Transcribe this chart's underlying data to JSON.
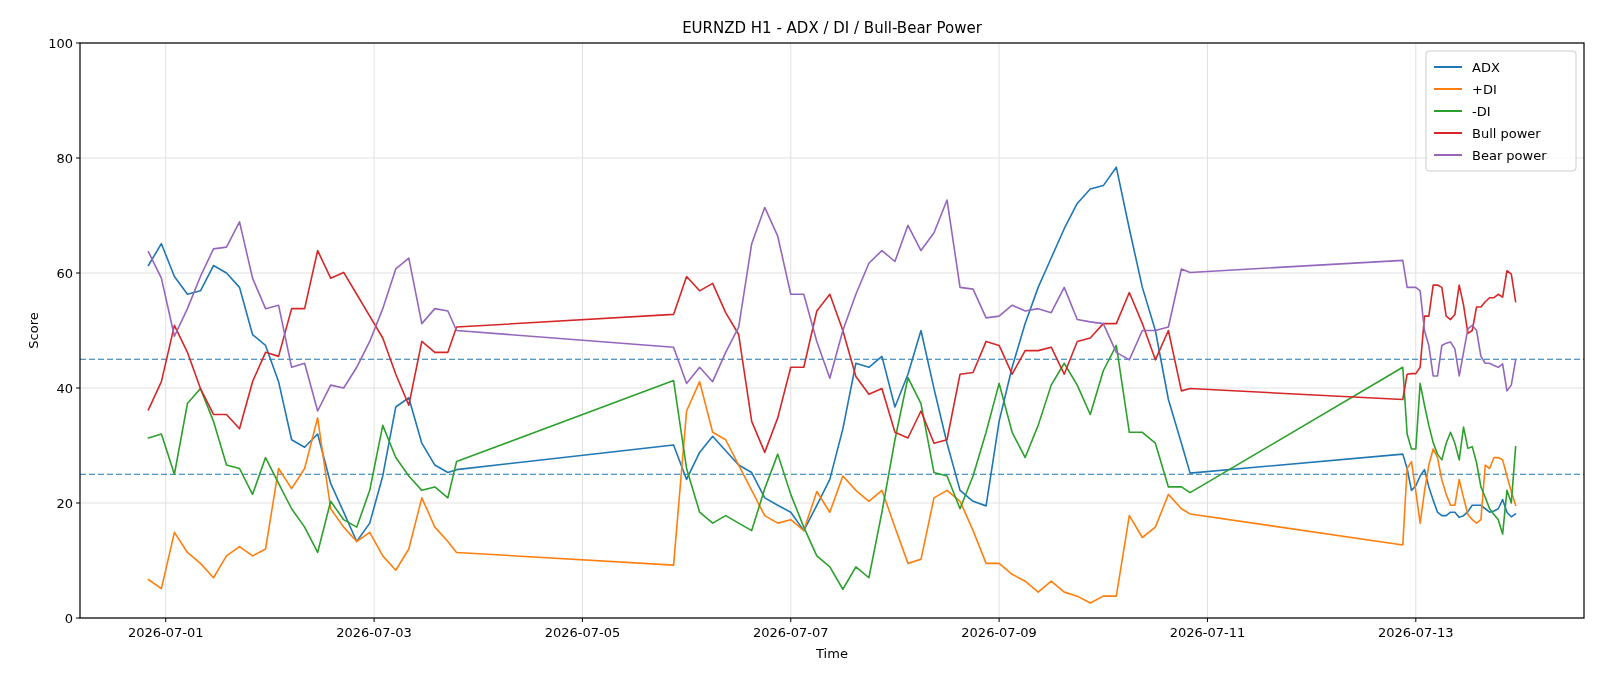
{
  "chart_data": {
    "type": "line",
    "title": "EURNZD H1 - ADX / DI / Bull-Bear Power",
    "xlabel": "Time",
    "ylabel": "Score",
    "x": [
      "2026-06-30T20:00",
      "2026-06-30T23:00",
      "2026-07-01T02:00",
      "2026-07-01T05:00",
      "2026-07-01T08:00",
      "2026-07-01T11:00",
      "2026-07-01T14:00",
      "2026-07-01T17:00",
      "2026-07-01T20:00",
      "2026-07-01T23:00",
      "2026-07-02T02:00",
      "2026-07-02T05:00",
      "2026-07-02T08:00",
      "2026-07-02T11:00",
      "2026-07-02T14:00",
      "2026-07-02T17:00",
      "2026-07-02T20:00",
      "2026-07-02T23:00",
      "2026-07-03T02:00",
      "2026-07-03T05:00",
      "2026-07-03T08:00",
      "2026-07-03T11:00",
      "2026-07-03T14:00",
      "2026-07-03T17:00",
      "2026-07-03T19:00",
      "2026-07-05T21:00",
      "2026-07-06T00:00",
      "2026-07-06T03:00",
      "2026-07-06T06:00",
      "2026-07-06T09:00",
      "2026-07-06T12:00",
      "2026-07-06T15:00",
      "2026-07-06T18:00",
      "2026-07-06T21:00",
      "2026-07-07T00:00",
      "2026-07-07T03:00",
      "2026-07-07T06:00",
      "2026-07-07T09:00",
      "2026-07-07T12:00",
      "2026-07-07T15:00",
      "2026-07-07T18:00",
      "2026-07-07T21:00",
      "2026-07-08T00:00",
      "2026-07-08T03:00",
      "2026-07-08T06:00",
      "2026-07-08T09:00",
      "2026-07-08T12:00",
      "2026-07-08T15:00",
      "2026-07-08T18:00",
      "2026-07-08T21:00",
      "2026-07-09T00:00",
      "2026-07-09T03:00",
      "2026-07-09T06:00",
      "2026-07-09T09:00",
      "2026-07-09T12:00",
      "2026-07-09T15:00",
      "2026-07-09T18:00",
      "2026-07-09T21:00",
      "2026-07-10T00:00",
      "2026-07-10T03:00",
      "2026-07-10T06:00",
      "2026-07-10T09:00",
      "2026-07-10T12:00",
      "2026-07-10T15:00",
      "2026-07-10T18:00",
      "2026-07-10T20:00",
      "2026-07-12T21:00",
      "2026-07-12T22:00",
      "2026-07-12T23:00",
      "2026-07-13T00:00",
      "2026-07-13T01:00",
      "2026-07-13T02:00",
      "2026-07-13T03:00",
      "2026-07-13T04:00",
      "2026-07-13T05:00",
      "2026-07-13T06:00",
      "2026-07-13T07:00",
      "2026-07-13T08:00",
      "2026-07-13T09:00",
      "2026-07-13T10:00",
      "2026-07-13T11:00",
      "2026-07-13T12:00",
      "2026-07-13T13:00",
      "2026-07-13T14:00",
      "2026-07-13T15:00",
      "2026-07-13T16:00",
      "2026-07-13T17:00",
      "2026-07-13T18:00",
      "2026-07-13T19:00",
      "2026-07-13T20:00",
      "2026-07-13T21:00",
      "2026-07-13T22:00",
      "2026-07-13T23:00"
    ],
    "series": [
      {
        "name": "ADX",
        "color": "#1f77b4",
        "values": [
          61.3,
          65.1,
          59.4,
          56.3,
          56.9,
          61.3,
          60,
          57.5,
          49.3,
          47.4,
          41.1,
          31,
          29.7,
          32,
          23.4,
          18.4,
          13.3,
          16.5,
          24.7,
          36.7,
          38.3,
          30.4,
          26.6,
          25.3,
          25.8,
          30.1,
          24.1,
          28.8,
          31.6,
          29.1,
          26.6,
          25.3,
          20.9,
          19.6,
          18.4,
          15.2,
          19.6,
          24.1,
          32.9,
          44.3,
          43.6,
          45.5,
          36.7,
          42.4,
          50,
          39.9,
          30.4,
          22.2,
          20.3,
          19.5,
          34.2,
          43.6,
          51.2,
          57.5,
          62.6,
          67.7,
          72.1,
          74.6,
          75.2,
          78.4,
          67.7,
          57.5,
          50,
          38,
          30.4,
          25.2,
          28.5,
          26,
          22.2,
          23,
          24.7,
          25.8,
          22.8,
          20.5,
          18.4,
          17.8,
          17.8,
          18.4,
          18.4,
          17.5,
          17.8,
          18.5,
          19.6,
          19.6,
          19.6,
          19,
          18.4,
          18.6,
          19,
          20.6,
          18.4,
          17.6,
          18.1
        ]
      },
      {
        "name": "+DI",
        "color": "#ff7f0e",
        "values": [
          6.7,
          5.1,
          14.9,
          11.4,
          9.5,
          7,
          10.8,
          12.4,
          10.8,
          12,
          26,
          22.5,
          26,
          34.8,
          19,
          15.8,
          13.3,
          14.9,
          10.8,
          8.3,
          12,
          20.9,
          15.8,
          13.3,
          11.4,
          9.2,
          36,
          41.1,
          32.3,
          31,
          26.6,
          22.2,
          17.8,
          16.5,
          17.1,
          15.2,
          22,
          18.4,
          24.7,
          22.2,
          20.3,
          22.2,
          15.8,
          9.5,
          10.2,
          20.9,
          22.2,
          20.3,
          15.2,
          9.5,
          9.5,
          7.6,
          6.4,
          4.5,
          6.4,
          4.5,
          3.8,
          2.6,
          3.8,
          3.8,
          17.8,
          14,
          15.8,
          21.5,
          19,
          18.1,
          12.7,
          26,
          27.2,
          22,
          16.5,
          22,
          26.6,
          29.4,
          27.9,
          24,
          21.5,
          19.6,
          19.6,
          24.1,
          20.9,
          18,
          17.1,
          16.5,
          17.1,
          26.6,
          26,
          27.9,
          27.9,
          27.5,
          24.7,
          22,
          19.6
        ]
      },
      {
        "name": "-DI",
        "color": "#2ca02c",
        "values": [
          31.3,
          32,
          25,
          37.3,
          39.9,
          34.2,
          26.6,
          26,
          21.5,
          27.9,
          23.4,
          19,
          15.8,
          11.4,
          20.3,
          17.1,
          15.8,
          22.2,
          33.5,
          27.9,
          24.7,
          22.2,
          22.8,
          20.9,
          27.2,
          41.3,
          26,
          18.4,
          16.5,
          17.8,
          16.5,
          15.2,
          22.5,
          28.5,
          21.5,
          15.8,
          10.8,
          8.9,
          5,
          8.9,
          7,
          18.4,
          31,
          41.8,
          37.3,
          25.3,
          24.7,
          19,
          24.7,
          32.3,
          40.8,
          32.3,
          27.9,
          33.5,
          40.5,
          44.3,
          40.5,
          35.4,
          43,
          47.4,
          32.3,
          32.3,
          30.4,
          22.8,
          22.8,
          21.8,
          43.6,
          32,
          29.4,
          29.4,
          40.8,
          37,
          33.5,
          30.5,
          28.5,
          27.5,
          30.4,
          32.3,
          30.4,
          27.5,
          33.2,
          29.5,
          29.8,
          27,
          22.8,
          21,
          19,
          18,
          17.1,
          14.6,
          22.2,
          20,
          29.8
        ]
      },
      {
        "name": "Bull power",
        "color": "#d62728",
        "values": [
          36.2,
          41.1,
          50.9,
          46.2,
          39.9,
          35.4,
          35.4,
          32.9,
          41.1,
          46.2,
          45.5,
          53.8,
          53.8,
          63.9,
          59.1,
          60.1,
          56.3,
          52.5,
          48.7,
          42.4,
          37,
          48.1,
          46.2,
          46.2,
          50.6,
          52.8,
          59.4,
          56.9,
          58.2,
          53.1,
          49.3,
          34.2,
          28.8,
          34.8,
          43.6,
          43.6,
          53.4,
          56.3,
          50,
          42,
          38.9,
          39.9,
          32.3,
          31.3,
          36,
          30.4,
          31,
          42.4,
          42.7,
          48.1,
          47.4,
          42.4,
          46.5,
          46.5,
          47.1,
          42.4,
          48.1,
          48.7,
          51.2,
          51.2,
          56.6,
          51.2,
          44.9,
          50,
          39.5,
          39.9,
          38,
          42.4,
          42.5,
          42.5,
          43.6,
          52.5,
          52.5,
          57.9,
          57.9,
          57.5,
          52.5,
          51.9,
          52.8,
          57.9,
          54.4,
          49.5,
          50,
          54.1,
          54.1,
          55,
          55.7,
          55.7,
          56.3,
          55.8,
          60.4,
          59.8,
          55
        ]
      },
      {
        "name": "Bear power",
        "color": "#9467bd",
        "values": [
          63.7,
          59.1,
          49,
          53.8,
          59.4,
          64.2,
          64.5,
          68.9,
          59.1,
          53.8,
          54.4,
          43.6,
          44.3,
          36,
          40.5,
          40,
          43.6,
          48.1,
          53.8,
          60.7,
          62.6,
          51.2,
          53.8,
          53.4,
          50,
          47.1,
          40.8,
          43.6,
          41.1,
          46.2,
          50.6,
          65.1,
          71.4,
          66.4,
          56.3,
          56.3,
          48.1,
          41.7,
          50,
          56.3,
          61.7,
          63.9,
          62,
          68.3,
          63.9,
          67,
          72.7,
          57.5,
          57.2,
          52.2,
          52.5,
          54.4,
          53.4,
          53.8,
          53.1,
          57.5,
          51.9,
          51.5,
          51.2,
          46.2,
          44.9,
          50,
          50,
          50.6,
          60.7,
          60.1,
          62.2,
          57.5,
          57.5,
          57.5,
          56.9,
          50,
          47.4,
          42.1,
          42.1,
          47.4,
          47.8,
          48,
          46.8,
          42.1,
          46.2,
          50.3,
          50.9,
          50,
          45.5,
          44.3,
          44.3,
          43.9,
          43.6,
          44.2,
          39.5,
          40.5,
          44.9
        ]
      }
    ],
    "xlim": [
      "2026-06-30T04:15",
      "2026-07-14T14:45"
    ],
    "xticks": [
      "2026-07-01",
      "2026-07-03",
      "2026-07-05",
      "2026-07-07",
      "2026-07-09",
      "2026-07-11",
      "2026-07-13"
    ],
    "ylim": [
      0,
      100
    ],
    "yticks": [
      0,
      20,
      40,
      60,
      80,
      100
    ],
    "ref_lines": [
      {
        "axis": "y",
        "value": 45,
        "color": "#1f77b4",
        "line_style": "dashed"
      },
      {
        "axis": "y",
        "value": 25,
        "color": "#1f77b4",
        "line_style": "dashed"
      }
    ],
    "grid": true,
    "legend": "top right"
  }
}
